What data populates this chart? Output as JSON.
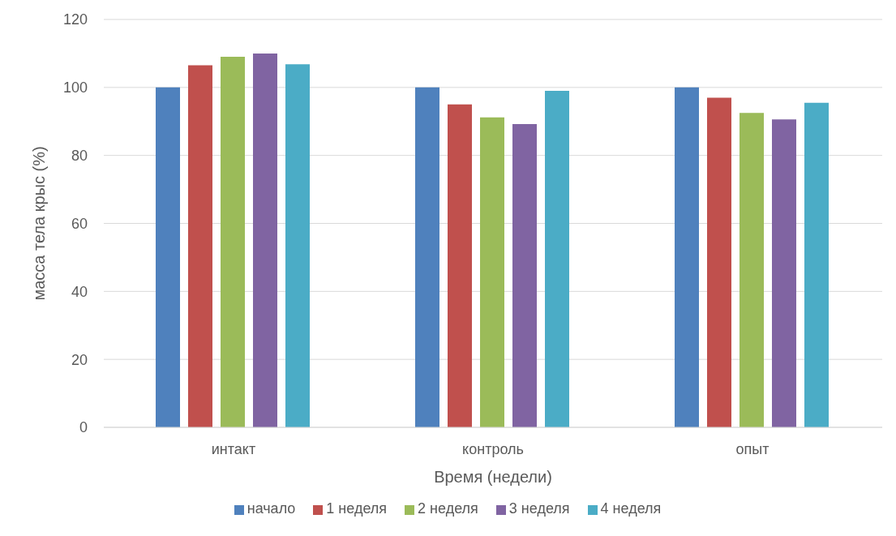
{
  "chart_data": {
    "type": "bar",
    "xlabel": "Время (недели)",
    "ylabel": "масса тела крыс (%)",
    "categories": [
      "интакт",
      "контроль",
      "опыт"
    ],
    "series": [
      {
        "name": "начало",
        "color": "#4f81bd",
        "values": [
          100,
          100,
          100
        ]
      },
      {
        "name": "1 неделя",
        "color": "#c0504d",
        "values": [
          106.5,
          95,
          97
        ]
      },
      {
        "name": "2 неделя",
        "color": "#9bbb59",
        "values": [
          109,
          91.2,
          92.5
        ]
      },
      {
        "name": "3 неделя",
        "color": "#8064a2",
        "values": [
          110,
          89.2,
          90.6
        ]
      },
      {
        "name": "4 неделя",
        "color": "#4bacc6",
        "values": [
          106.8,
          99,
          95.5
        ]
      }
    ],
    "ylim": [
      0,
      120
    ],
    "yticks": [
      0,
      20,
      40,
      60,
      80,
      100,
      120
    ],
    "grid": "y",
    "legend": "bottom"
  }
}
